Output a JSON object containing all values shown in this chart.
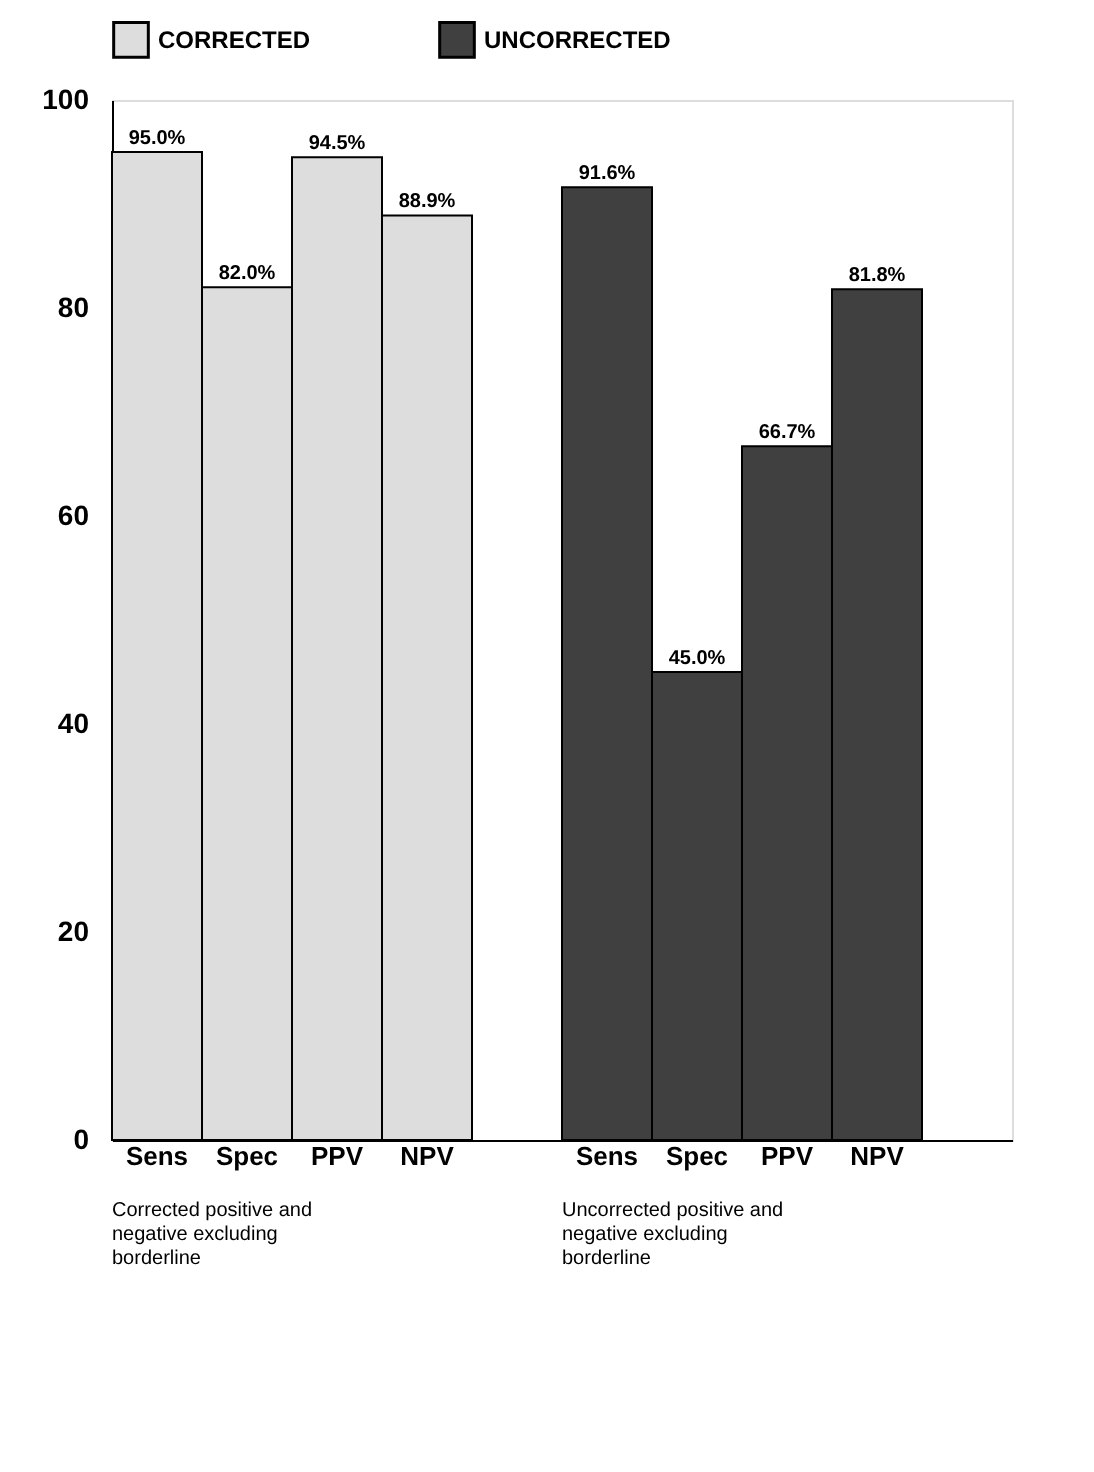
{
  "chart_data": {
    "type": "bar",
    "categories": [
      "Sens",
      "Spec",
      "PPV",
      "NPV",
      null,
      "Sens",
      "Spec",
      "PPV",
      "NPV",
      null
    ],
    "series": [
      {
        "name": "CORRECTED",
        "color": "#dddddd",
        "values": [
          95.0,
          82.0,
          94.5,
          88.9,
          null,
          null,
          null,
          null,
          null,
          null
        ],
        "value_labels": [
          "95.0%",
          "82.0%",
          "94.5%",
          "88.9%",
          null,
          null,
          null,
          null,
          null,
          null
        ]
      },
      {
        "name": "UNCORRECTED",
        "color": "#404040",
        "values": [
          null,
          null,
          null,
          null,
          null,
          91.6,
          45.0,
          66.7,
          81.8,
          null
        ],
        "value_labels": [
          null,
          null,
          null,
          null,
          null,
          "91.6%",
          "45.0%",
          "66.7%",
          "81.8%",
          null
        ]
      }
    ],
    "ylim": [
      0,
      100
    ],
    "yticks": [
      0,
      20,
      40,
      60,
      80,
      100
    ],
    "grid": false,
    "legend": "top",
    "annotations": [
      "Corrected positive and negative excluding borderline",
      "Uncorrected positive and negative excluding borderline"
    ]
  }
}
